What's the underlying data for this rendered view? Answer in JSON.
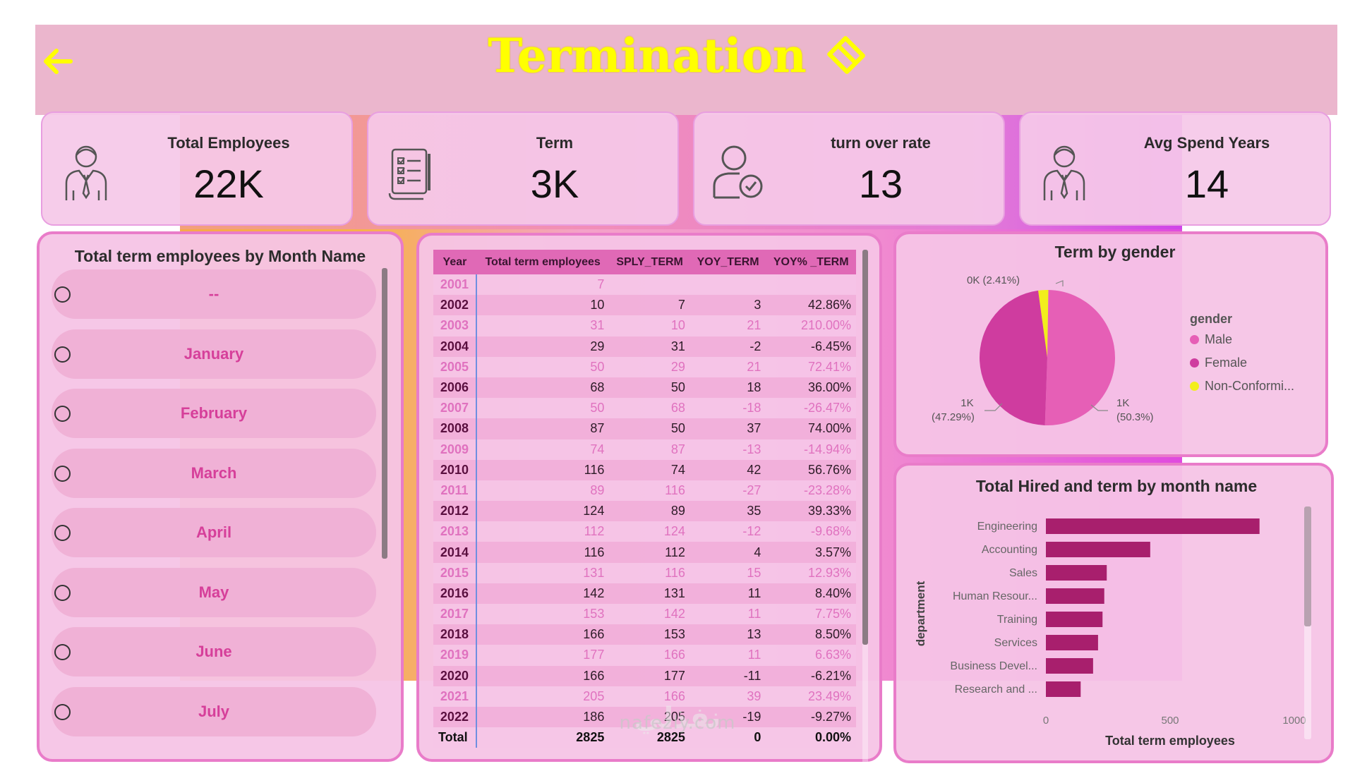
{
  "header": {
    "title": "Termination"
  },
  "kpis": [
    {
      "label": "Total Employees",
      "value": "22K",
      "icon": "employee-icon"
    },
    {
      "label": "Term",
      "value": "3K",
      "icon": "checklist-document-icon"
    },
    {
      "label": "turn over rate",
      "value": "13",
      "icon": "user-check-icon"
    },
    {
      "label": "Avg Spend Years",
      "value": "14",
      "icon": "employee-icon"
    }
  ],
  "month_slicer": {
    "title": "Total term employees by Month Name",
    "items": [
      "--",
      "January",
      "February",
      "March",
      "April",
      "May",
      "June",
      "July"
    ]
  },
  "year_table": {
    "columns": [
      "Year",
      "Total term employees",
      "SPLY_TERM",
      "YOY_TERM",
      "YOY% _TERM"
    ],
    "rows": [
      [
        "2001",
        "7",
        "",
        "",
        ""
      ],
      [
        "2002",
        "10",
        "7",
        "3",
        "42.86%"
      ],
      [
        "2003",
        "31",
        "10",
        "21",
        "210.00%"
      ],
      [
        "2004",
        "29",
        "31",
        "-2",
        "-6.45%"
      ],
      [
        "2005",
        "50",
        "29",
        "21",
        "72.41%"
      ],
      [
        "2006",
        "68",
        "50",
        "18",
        "36.00%"
      ],
      [
        "2007",
        "50",
        "68",
        "-18",
        "-26.47%"
      ],
      [
        "2008",
        "87",
        "50",
        "37",
        "74.00%"
      ],
      [
        "2009",
        "74",
        "87",
        "-13",
        "-14.94%"
      ],
      [
        "2010",
        "116",
        "74",
        "42",
        "56.76%"
      ],
      [
        "2011",
        "89",
        "116",
        "-27",
        "-23.28%"
      ],
      [
        "2012",
        "124",
        "89",
        "35",
        "39.33%"
      ],
      [
        "2013",
        "112",
        "124",
        "-12",
        "-9.68%"
      ],
      [
        "2014",
        "116",
        "112",
        "4",
        "3.57%"
      ],
      [
        "2015",
        "131",
        "116",
        "15",
        "12.93%"
      ],
      [
        "2016",
        "142",
        "131",
        "11",
        "8.40%"
      ],
      [
        "2017",
        "153",
        "142",
        "11",
        "7.75%"
      ],
      [
        "2018",
        "166",
        "153",
        "13",
        "8.50%"
      ],
      [
        "2019",
        "177",
        "166",
        "11",
        "6.63%"
      ],
      [
        "2020",
        "166",
        "177",
        "-11",
        "-6.21%"
      ],
      [
        "2021",
        "205",
        "166",
        "39",
        "23.49%"
      ],
      [
        "2022",
        "186",
        "205",
        "-19",
        "-9.27%"
      ]
    ],
    "total": [
      "Total",
      "2825",
      "2825",
      "0",
      "0.00%"
    ]
  },
  "chart_data": [
    {
      "type": "pie",
      "title": "Term by gender",
      "legend_title": "gender",
      "legend_position": "right",
      "slices": [
        {
          "name": "Male",
          "label": "1K",
          "pct_label": "(50.3%)",
          "value": 50.3,
          "color": "#e65fb6"
        },
        {
          "name": "Female",
          "label": "1K",
          "pct_label": "(47.29%)",
          "value": 47.29,
          "color": "#cf3c9f"
        },
        {
          "name": "Non-Conformi...",
          "label": "0K",
          "pct_label": "(2.41%)",
          "value": 2.41,
          "color": "#f2ee1c"
        }
      ]
    },
    {
      "type": "bar",
      "orientation": "horizontal",
      "title": "Total Hired and term by month name",
      "xlabel": "Total term employees",
      "ylabel": "department",
      "xlim": [
        0,
        1000
      ],
      "xticks": [
        "0",
        "500",
        "1000"
      ],
      "categories": [
        "Engineering",
        "Accounting",
        "Sales",
        "Human Resour...",
        "Training",
        "Services",
        "Business Devel...",
        "Research and ..."
      ],
      "values": [
        860,
        420,
        245,
        235,
        228,
        210,
        190,
        140
      ],
      "bar_color": "#a81f6d"
    }
  ],
  "watermark": {
    "arabic": "نفذلي",
    "latin": "nafezly.com"
  }
}
